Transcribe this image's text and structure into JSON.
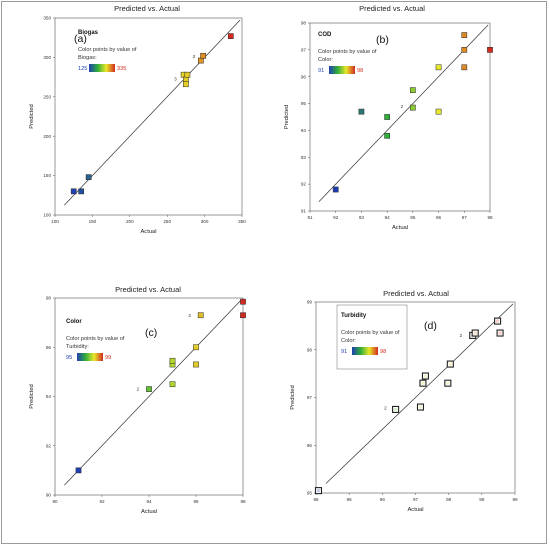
{
  "chart_data": [
    {
      "type": "scatter",
      "title": "Predicted vs. Actual",
      "panel_label": "(a)",
      "response": "Biogas",
      "legend_line1": "Color points by value of",
      "legend_line2": "Biogas:",
      "color_min": "125",
      "color_max": "335",
      "xlabel": "Actual",
      "ylabel": "Predicted",
      "xlim": [
        100,
        350
      ],
      "ylim": [
        100,
        350
      ],
      "xticks": [
        "100",
        "150",
        "200",
        "250",
        "300",
        "350"
      ],
      "yticks": [
        "100",
        "150",
        "200",
        "250",
        "300",
        "350"
      ],
      "legend_box": false,
      "points": [
        {
          "x": 125,
          "y": 130
        },
        {
          "x": 135,
          "y": 130
        },
        {
          "x": 145,
          "y": 148
        },
        {
          "x": 272,
          "y": 278
        },
        {
          "x": 275,
          "y": 272
        },
        {
          "x": 275,
          "y": 266
        },
        {
          "x": 277,
          "y": 278
        },
        {
          "x": 295,
          "y": 296
        },
        {
          "x": 298,
          "y": 302
        },
        {
          "x": 335,
          "y": 327
        }
      ],
      "counts": [
        {
          "x": 268,
          "y": 273,
          "label": "3"
        },
        {
          "x": 293,
          "y": 301,
          "label": "2"
        }
      ]
    },
    {
      "type": "scatter",
      "title": "Predicted vs. Actual",
      "panel_label": "(b)",
      "response": "COD",
      "legend_line1": "Color points by value of",
      "legend_line2": "Color:",
      "color_min": "91",
      "color_max": "98",
      "xlabel": "Actual",
      "ylabel": "Predicted",
      "xlim": [
        91,
        98
      ],
      "ylim": [
        91,
        98
      ],
      "xticks": [
        "91",
        "92",
        "93",
        "94",
        "95",
        "96",
        "97",
        "98"
      ],
      "yticks": [
        "91",
        "92",
        "93",
        "94",
        "95",
        "96",
        "97",
        "98"
      ],
      "legend_box": false,
      "points": [
        {
          "x": 92,
          "y": 91.8
        },
        {
          "x": 93,
          "y": 94.7
        },
        {
          "x": 94,
          "y": 93.8
        },
        {
          "x": 94,
          "y": 94.5
        },
        {
          "x": 95,
          "y": 94.85
        },
        {
          "x": 95,
          "y": 95.5
        },
        {
          "x": 96,
          "y": 94.7
        },
        {
          "x": 96,
          "y": 96.35
        },
        {
          "x": 97,
          "y": 96.35
        },
        {
          "x": 97,
          "y": 97.0
        },
        {
          "x": 97,
          "y": 97.55
        },
        {
          "x": 98,
          "y": 97.0
        }
      ],
      "counts": [
        {
          "x": 94.78,
          "y": 94.9,
          "label": "2"
        }
      ]
    },
    {
      "type": "scatter",
      "title": "Predicted vs. Actual",
      "panel_label": "(c)",
      "response": "Color",
      "legend_line1": "Color points by value of",
      "legend_line2": "Turbidity:",
      "color_min": "95",
      "color_max": "99",
      "xlabel": "Actual",
      "ylabel": "Predicted",
      "xlim": [
        90,
        98
      ],
      "ylim": [
        90,
        98
      ],
      "xticks": [
        "90",
        "92",
        "94",
        "96",
        "98"
      ],
      "yticks": [
        "90",
        "92",
        "94",
        "96",
        "98"
      ],
      "legend_box": false,
      "points": [
        {
          "x": 91,
          "y": 91
        },
        {
          "x": 94,
          "y": 94.3
        },
        {
          "x": 95,
          "y": 94.5
        },
        {
          "x": 95,
          "y": 95.3
        },
        {
          "x": 95,
          "y": 95.45
        },
        {
          "x": 96,
          "y": 95.3
        },
        {
          "x": 96,
          "y": 96.0
        },
        {
          "x": 96.2,
          "y": 97.3
        },
        {
          "x": 98,
          "y": 97.3
        },
        {
          "x": 98,
          "y": 97.85
        }
      ],
      "counts": [
        {
          "x": 93.75,
          "y": 94.3,
          "label": "2"
        },
        {
          "x": 95.95,
          "y": 97.3,
          "label": "3"
        }
      ]
    },
    {
      "type": "scatter",
      "title": "Predicted vs. Actual",
      "panel_label": "(d)",
      "response": "Turbidity",
      "legend_line1": "Color points by value of",
      "legend_line2": "Color:",
      "color_min": "91",
      "color_max": "98",
      "xlabel": "Actual",
      "ylabel": "Predicted",
      "xlim": [
        95,
        99
      ],
      "ylim": [
        95,
        99
      ],
      "xticks": [
        "95",
        "96",
        "96",
        "97",
        "98",
        "98",
        "99"
      ],
      "yticks": [
        "95",
        "96",
        "97",
        "98",
        "99"
      ],
      "legend_box": true,
      "points": [
        {
          "x": 95.05,
          "y": 95.05
        },
        {
          "x": 96.6,
          "y": 96.75
        },
        {
          "x": 97.1,
          "y": 96.8
        },
        {
          "x": 97.15,
          "y": 97.3
        },
        {
          "x": 97.2,
          "y": 97.45
        },
        {
          "x": 97.65,
          "y": 97.3
        },
        {
          "x": 97.7,
          "y": 97.7
        },
        {
          "x": 98.15,
          "y": 98.3
        },
        {
          "x": 98.2,
          "y": 98.35
        },
        {
          "x": 98.65,
          "y": 98.6
        },
        {
          "x": 98.7,
          "y": 98.35
        }
      ],
      "counts": [
        {
          "x": 96.5,
          "y": 96.78,
          "label": "2"
        },
        {
          "x": 98.02,
          "y": 98.3,
          "label": "2"
        }
      ]
    }
  ],
  "colors": {
    "low": "#1f3fb0",
    "mid_low": "#2fae3a",
    "mid_high": "#e8e82a",
    "high": "#d22a1f",
    "axis": "#555555",
    "fit_line": "#333333"
  }
}
